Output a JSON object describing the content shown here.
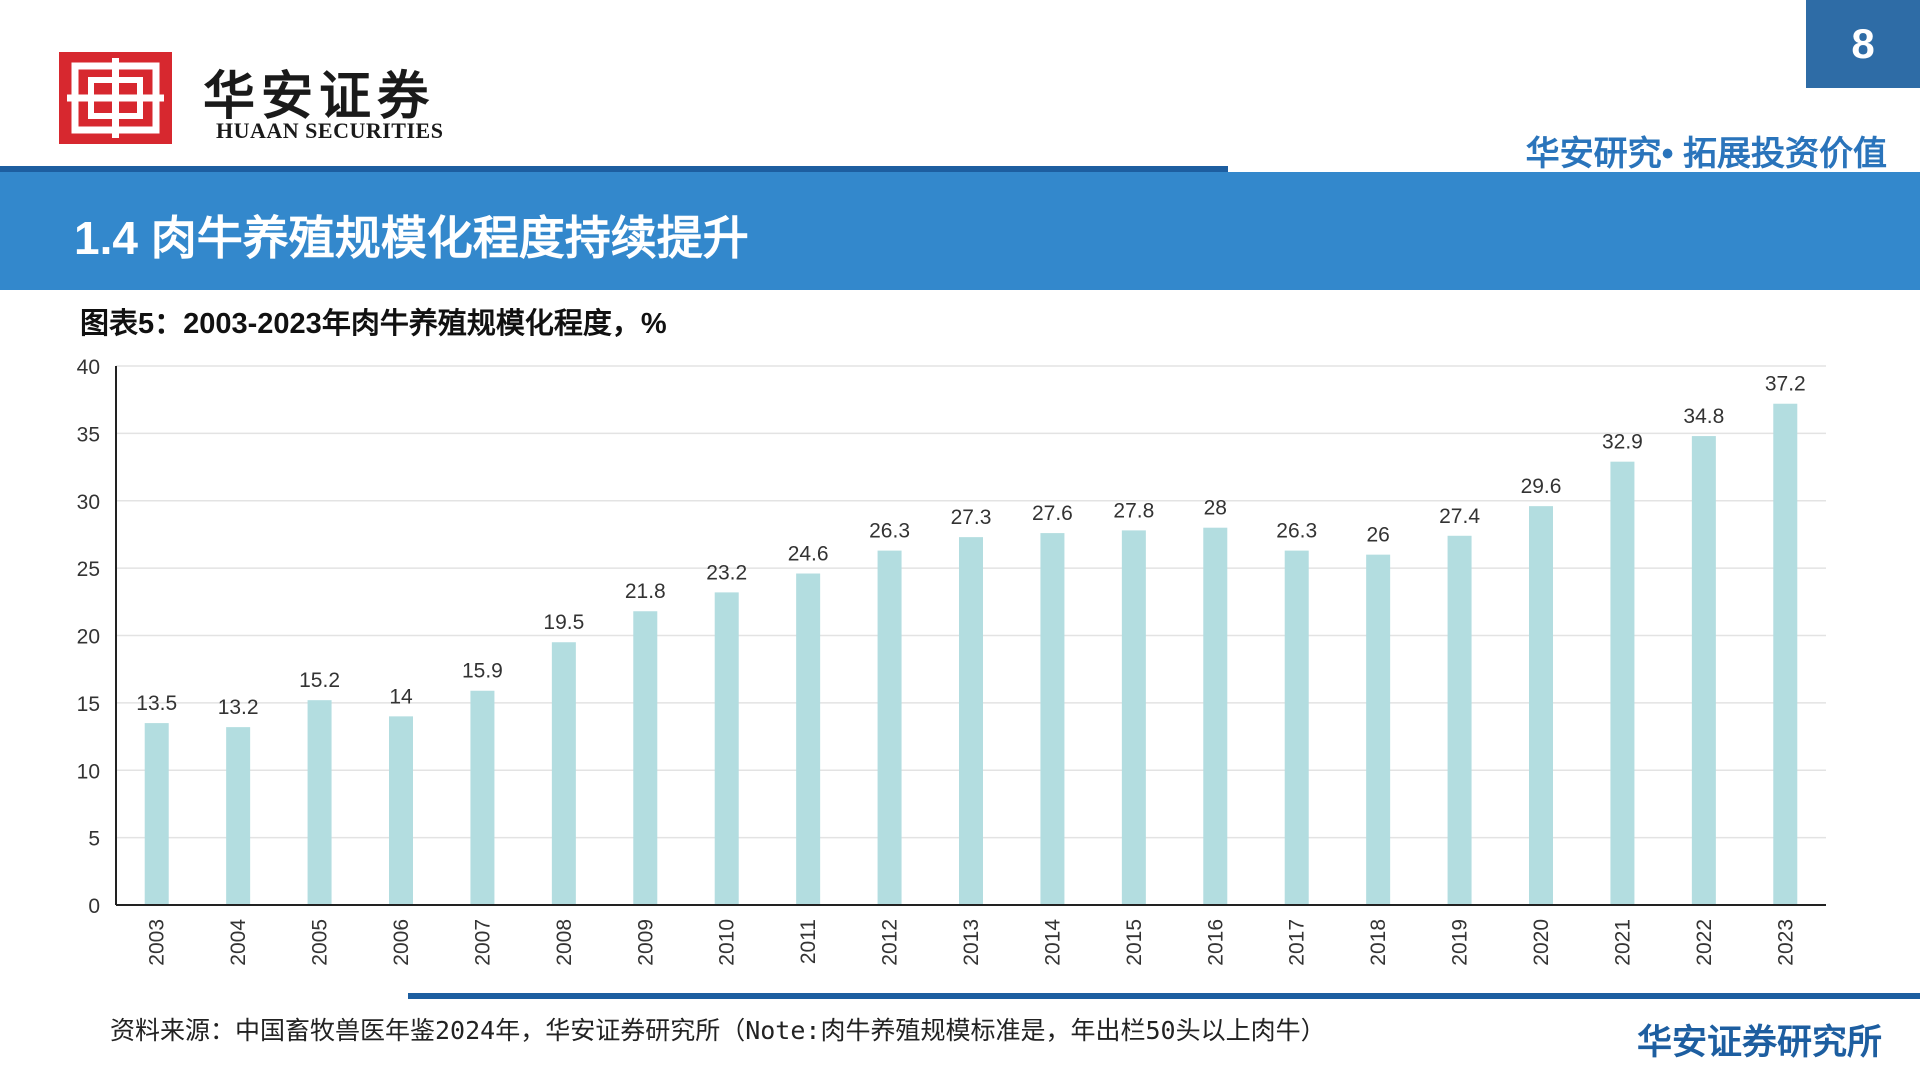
{
  "header": {
    "logo_cn": "华安证券",
    "logo_en": "HUAAN SECURITIES",
    "page_number": "8",
    "slogan": "华安研究• 拓展投资价值"
  },
  "banner": {
    "title": "1.4 肉牛养殖规模化程度持续提升"
  },
  "chart_data": {
    "type": "bar",
    "title": "图表5：2003-2023年肉牛养殖规模化程度，%",
    "categories": [
      "2003",
      "2004",
      "2005",
      "2006",
      "2007",
      "2008",
      "2009",
      "2010",
      "2011",
      "2012",
      "2013",
      "2014",
      "2015",
      "2016",
      "2017",
      "2018",
      "2019",
      "2020",
      "2021",
      "2022",
      "2023"
    ],
    "values": [
      13.5,
      13.2,
      15.2,
      14,
      15.9,
      19.5,
      21.8,
      23.2,
      24.6,
      26.3,
      27.3,
      27.6,
      27.8,
      28,
      26.3,
      26,
      27.4,
      29.6,
      32.9,
      34.8,
      37.2
    ],
    "ylim": [
      0,
      40
    ],
    "yticks": [
      0,
      5,
      10,
      15,
      20,
      25,
      30,
      35,
      40
    ],
    "grid": true,
    "bar_color": "#b3dde0",
    "data_labels": true
  },
  "footer": {
    "source": "资料来源：中国畜牧兽医年鉴2024年，华安证券研究所（Note:肉牛养殖规模标准是，年出栏50头以上肉牛）",
    "brand": "华安证券研究所"
  }
}
